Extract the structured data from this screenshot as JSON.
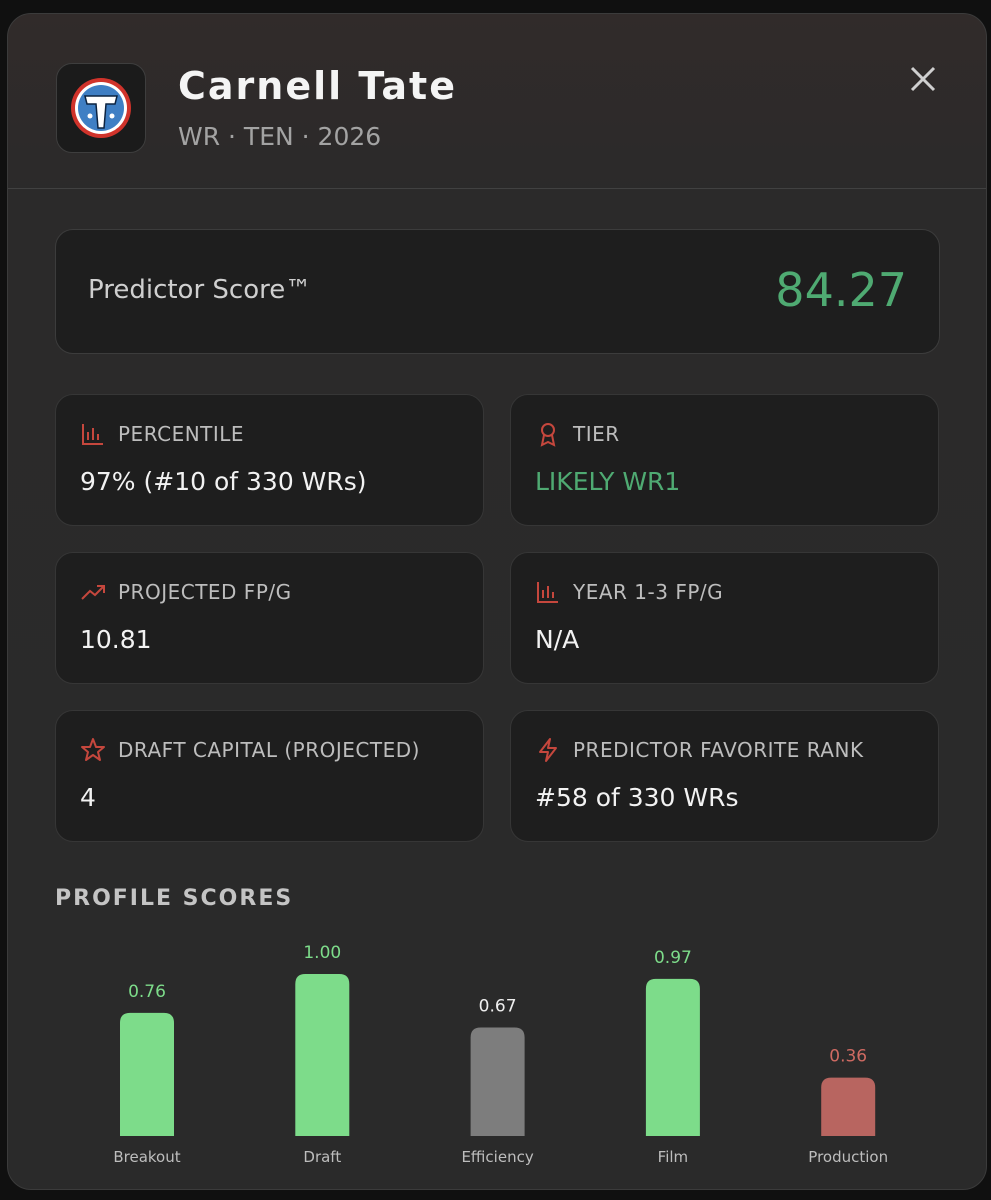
{
  "header": {
    "name": "Carnell Tate",
    "subtitle": "WR · TEN · 2026"
  },
  "score": {
    "label": "Predictor Score™",
    "value": "84.27"
  },
  "stats": [
    {
      "label": "PERCENTILE",
      "value": "97% (#10 of 330 WRs)"
    },
    {
      "label": "TIER",
      "value": "LIKELY WR1"
    },
    {
      "label": "PROJECTED FP/G",
      "value": "10.81"
    },
    {
      "label": "YEAR 1-3 FP/G",
      "value": "N/A"
    },
    {
      "label": "DRAFT CAPITAL (PROJECTED)",
      "value": "4"
    },
    {
      "label": "PREDICTOR FAVORITE RANK",
      "value": "#58 of 330 WRs"
    }
  ],
  "chart_data": {
    "type": "bar",
    "title": "PROFILE SCORES",
    "categories": [
      "Breakout",
      "Draft",
      "Efficiency",
      "Film",
      "Production"
    ],
    "values": [
      0.76,
      1,
      0.67,
      0.97,
      0.36
    ],
    "value_labels": [
      "0.76",
      "1.00",
      "0.67",
      "0.97",
      "0.36"
    ],
    "colors": [
      "#7ddc8a",
      "#7ddc8a",
      "#7d7d7d",
      "#7ddc8a",
      "#b86560"
    ],
    "label_colors": [
      "#7ddc8a",
      "#7ddc8a",
      "#eeeeee",
      "#7ddc8a",
      "#cf6a62"
    ]
  }
}
